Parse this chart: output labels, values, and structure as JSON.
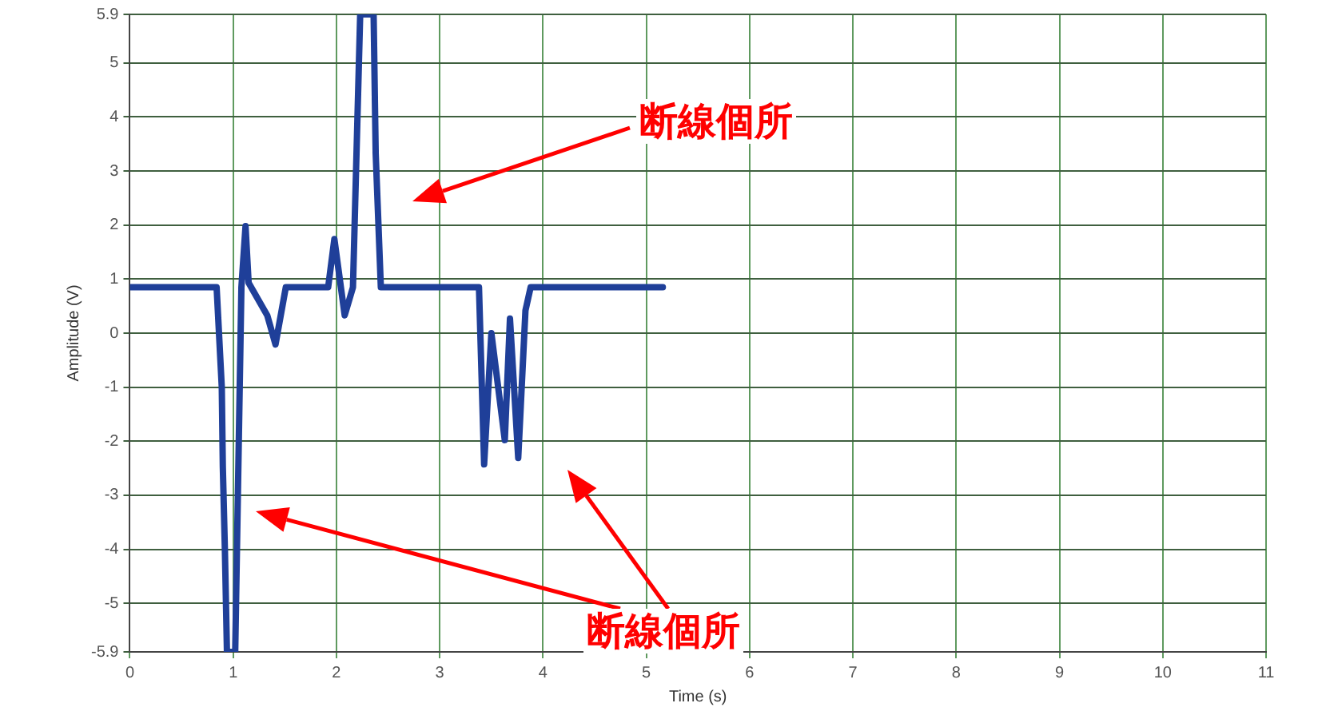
{
  "chart_data": {
    "type": "line",
    "xlabel": "Time (s)",
    "ylabel": "Amplitude (V)",
    "x": [
      0,
      0.84,
      0.89,
      0.9,
      0.92,
      0.94,
      1.02,
      1.08,
      1.12,
      1.15,
      1.33,
      1.41,
      1.51,
      1.92,
      1.98,
      2.08,
      2.16,
      2.23,
      2.36,
      2.38,
      2.43,
      3.38,
      3.43,
      3.5,
      3.63,
      3.68,
      3.76,
      3.83,
      3.88,
      5.16
    ],
    "series": [
      {
        "color": "#1f3f99",
        "values": [
          0.85,
          0.85,
          -1.0,
          -2.47,
          -4.0,
          -5.9,
          -5.9,
          0.85,
          1.98,
          0.93,
          0.33,
          -0.21,
          0.85,
          0.85,
          1.74,
          0.33,
          0.85,
          5.9,
          5.9,
          3.33,
          0.85,
          0.85,
          -2.43,
          0,
          -1.98,
          0.27,
          -2.31,
          0.42,
          0.85,
          0.85
        ]
      }
    ],
    "xlim": [
      0,
      11
    ],
    "xticks": [
      0,
      1,
      2,
      3,
      4,
      5,
      6,
      7,
      8,
      9,
      10,
      11
    ],
    "ylim": [
      -5.9,
      5.9
    ],
    "yticks": [
      -5.9,
      -5,
      -4,
      -3,
      -2,
      -1,
      0,
      1,
      2,
      3,
      4,
      5,
      5.9
    ],
    "grid": true,
    "legend": false,
    "marker": "none",
    "line_style": "solid",
    "annotations": [
      "断線個所",
      "断線個所"
    ]
  }
}
